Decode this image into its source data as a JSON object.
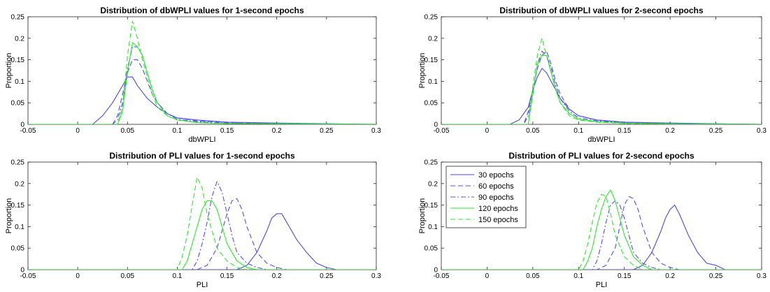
{
  "series_styles": [
    {
      "name": "30 epochs",
      "color": "#4a4ae0",
      "dash": "solid"
    },
    {
      "name": "60 epochs",
      "color": "#5050e8",
      "dash": "dashed"
    },
    {
      "name": "90 epochs",
      "color": "#5050e8",
      "dash": "dashdot"
    },
    {
      "name": "120 epochs",
      "color": "#2ee82e",
      "dash": "solid"
    },
    {
      "name": "150 epochs",
      "color": "#2ee82e",
      "dash": "dashed"
    }
  ],
  "chart_data": [
    {
      "type": "line",
      "title": "Distribution of dbWPLI values for 1-second epochs",
      "xlabel": "dbWPLI",
      "ylabel": "Proportion",
      "xlim": [
        -0.05,
        0.3
      ],
      "ylim": [
        0,
        0.25
      ],
      "xticks": [
        -0.05,
        0,
        0.05,
        0.1,
        0.15,
        0.2,
        0.25,
        0.3
      ],
      "xticklabels": [
        "-0.05",
        "0",
        "0.05",
        "0.1",
        "0.15",
        "0.2",
        "0.25",
        "0.3"
      ],
      "yticks": [
        0,
        0.05,
        0.1,
        0.15,
        0.2,
        0.25
      ],
      "yticklabels": [
        "0",
        "0.05",
        "0.1",
        "0.15",
        "0.2",
        "0.25"
      ],
      "legend": false,
      "series": [
        {
          "x": [
            -0.05,
            0.015,
            0.025,
            0.035,
            0.045,
            0.05,
            0.055,
            0.06,
            0.065,
            0.07,
            0.08,
            0.09,
            0.1,
            0.12,
            0.15,
            0.2,
            0.3
          ],
          "values": [
            0,
            0,
            0.02,
            0.05,
            0.09,
            0.11,
            0.11,
            0.09,
            0.075,
            0.06,
            0.04,
            0.025,
            0.015,
            0.01,
            0.005,
            0.003,
            0
          ]
        },
        {
          "x": [
            -0.05,
            0.035,
            0.04,
            0.045,
            0.05,
            0.055,
            0.06,
            0.065,
            0.07,
            0.075,
            0.08,
            0.09,
            0.1,
            0.12,
            0.15,
            0.2,
            0.3
          ],
          "values": [
            0,
            0,
            0.02,
            0.07,
            0.12,
            0.15,
            0.15,
            0.13,
            0.1,
            0.07,
            0.05,
            0.025,
            0.015,
            0.008,
            0.004,
            0.002,
            0
          ]
        },
        {
          "x": [
            -0.05,
            0.035,
            0.04,
            0.045,
            0.05,
            0.055,
            0.06,
            0.065,
            0.07,
            0.075,
            0.08,
            0.09,
            0.1,
            0.12,
            0.15,
            0.2,
            0.3
          ],
          "values": [
            0,
            0,
            0.01,
            0.05,
            0.13,
            0.18,
            0.18,
            0.16,
            0.12,
            0.08,
            0.05,
            0.025,
            0.012,
            0.006,
            0.003,
            0.002,
            0
          ]
        },
        {
          "x": [
            -0.05,
            0.04,
            0.045,
            0.05,
            0.055,
            0.06,
            0.065,
            0.07,
            0.075,
            0.08,
            0.09,
            0.1,
            0.12,
            0.15,
            0.3
          ],
          "values": [
            0,
            0,
            0.03,
            0.12,
            0.19,
            0.18,
            0.16,
            0.12,
            0.08,
            0.05,
            0.02,
            0.01,
            0.004,
            0.002,
            0
          ]
        },
        {
          "x": [
            -0.05,
            0.04,
            0.045,
            0.05,
            0.055,
            0.06,
            0.065,
            0.07,
            0.075,
            0.08,
            0.09,
            0.1,
            0.12,
            0.15,
            0.3
          ],
          "values": [
            0,
            0,
            0.04,
            0.16,
            0.24,
            0.2,
            0.15,
            0.11,
            0.07,
            0.04,
            0.02,
            0.01,
            0.004,
            0.002,
            0
          ]
        }
      ]
    },
    {
      "type": "line",
      "title": "Distribution of dbWPLI values for 2-second epochs",
      "xlabel": "dbWPLI",
      "ylabel": "Proportion",
      "xlim": [
        -0.05,
        0.3
      ],
      "ylim": [
        0,
        0.25
      ],
      "xticks": [
        -0.05,
        0,
        0.05,
        0.1,
        0.15,
        0.2,
        0.25,
        0.3
      ],
      "xticklabels": [
        "-0.05",
        "0",
        "0.05",
        "0.1",
        "0.15",
        "0.2",
        "0.25",
        "0.3"
      ],
      "yticks": [
        0,
        0.05,
        0.1,
        0.15,
        0.2,
        0.25
      ],
      "yticklabels": [
        "0",
        "0.05",
        "0.1",
        "0.15",
        "0.2",
        "0.25"
      ],
      "legend": false,
      "series": [
        {
          "x": [
            -0.05,
            0.025,
            0.035,
            0.045,
            0.05,
            0.055,
            0.06,
            0.065,
            0.07,
            0.075,
            0.08,
            0.09,
            0.1,
            0.12,
            0.15,
            0.2,
            0.3
          ],
          "values": [
            0,
            0,
            0.01,
            0.04,
            0.08,
            0.11,
            0.13,
            0.12,
            0.1,
            0.08,
            0.06,
            0.035,
            0.02,
            0.01,
            0.005,
            0.003,
            0
          ]
        },
        {
          "x": [
            -0.05,
            0.04,
            0.045,
            0.05,
            0.055,
            0.06,
            0.065,
            0.07,
            0.075,
            0.08,
            0.09,
            0.1,
            0.12,
            0.15,
            0.2,
            0.3
          ],
          "values": [
            0,
            0,
            0.03,
            0.08,
            0.13,
            0.16,
            0.17,
            0.14,
            0.1,
            0.07,
            0.035,
            0.02,
            0.01,
            0.005,
            0.002,
            0
          ]
        },
        {
          "x": [
            -0.05,
            0.04,
            0.045,
            0.05,
            0.055,
            0.06,
            0.065,
            0.07,
            0.075,
            0.08,
            0.09,
            0.1,
            0.12,
            0.15,
            0.2,
            0.3
          ],
          "values": [
            0,
            0,
            0.02,
            0.07,
            0.14,
            0.17,
            0.16,
            0.13,
            0.09,
            0.06,
            0.03,
            0.015,
            0.008,
            0.004,
            0.002,
            0
          ]
        },
        {
          "x": [
            -0.05,
            0.045,
            0.05,
            0.055,
            0.06,
            0.065,
            0.07,
            0.075,
            0.08,
            0.09,
            0.1,
            0.12,
            0.15,
            0.2,
            0.3
          ],
          "values": [
            0,
            0,
            0.07,
            0.14,
            0.16,
            0.16,
            0.12,
            0.08,
            0.05,
            0.025,
            0.012,
            0.006,
            0.003,
            0.001,
            0
          ]
        },
        {
          "x": [
            -0.05,
            0.045,
            0.05,
            0.055,
            0.06,
            0.065,
            0.07,
            0.075,
            0.08,
            0.09,
            0.1,
            0.12,
            0.15,
            0.2,
            0.3
          ],
          "values": [
            0,
            0,
            0.09,
            0.16,
            0.2,
            0.16,
            0.12,
            0.08,
            0.05,
            0.02,
            0.01,
            0.005,
            0.002,
            0.001,
            0
          ]
        }
      ]
    },
    {
      "type": "line",
      "title": "Distribution of PLI values for 1-second epochs",
      "xlabel": "PLI",
      "ylabel": "Proportion",
      "xlim": [
        -0.05,
        0.3
      ],
      "ylim": [
        0,
        0.25
      ],
      "xticks": [
        -0.05,
        0,
        0.05,
        0.1,
        0.15,
        0.2,
        0.25,
        0.3
      ],
      "xticklabels": [
        "-0.05",
        "0",
        "0.05",
        "0.1",
        "0.15",
        "0.2",
        "0.25",
        "0.3"
      ],
      "yticks": [
        0,
        0.05,
        0.1,
        0.15,
        0.2,
        0.25
      ],
      "yticklabels": [
        "0",
        "0.05",
        "0.1",
        "0.15",
        "0.2",
        "0.25"
      ],
      "legend": false,
      "series": [
        {
          "x": [
            -0.05,
            0.16,
            0.17,
            0.18,
            0.19,
            0.195,
            0.2,
            0.205,
            0.21,
            0.22,
            0.23,
            0.24,
            0.25,
            0.26,
            0.3
          ],
          "values": [
            0,
            0,
            0.01,
            0.04,
            0.09,
            0.12,
            0.13,
            0.13,
            0.11,
            0.07,
            0.04,
            0.015,
            0.005,
            0,
            0
          ]
        },
        {
          "x": [
            -0.05,
            0.12,
            0.13,
            0.14,
            0.145,
            0.15,
            0.155,
            0.16,
            0.165,
            0.17,
            0.18,
            0.19,
            0.2,
            0.21,
            0.3
          ],
          "values": [
            0,
            0,
            0.01,
            0.05,
            0.09,
            0.13,
            0.16,
            0.165,
            0.14,
            0.1,
            0.04,
            0.015,
            0.005,
            0,
            0
          ]
        },
        {
          "x": [
            -0.05,
            0.115,
            0.12,
            0.125,
            0.13,
            0.135,
            0.14,
            0.145,
            0.15,
            0.155,
            0.16,
            0.17,
            0.18,
            0.19,
            0.3
          ],
          "values": [
            0,
            0,
            0.02,
            0.06,
            0.11,
            0.17,
            0.205,
            0.18,
            0.13,
            0.08,
            0.04,
            0.015,
            0.005,
            0,
            0
          ]
        },
        {
          "x": [
            -0.05,
            0.105,
            0.11,
            0.115,
            0.12,
            0.125,
            0.13,
            0.135,
            0.14,
            0.145,
            0.15,
            0.16,
            0.17,
            0.18,
            0.3
          ],
          "values": [
            0,
            0,
            0.02,
            0.06,
            0.1,
            0.14,
            0.16,
            0.16,
            0.14,
            0.1,
            0.06,
            0.02,
            0.005,
            0,
            0
          ]
        },
        {
          "x": [
            -0.05,
            0.1,
            0.105,
            0.11,
            0.115,
            0.12,
            0.125,
            0.13,
            0.135,
            0.14,
            0.15,
            0.16,
            0.17,
            0.3
          ],
          "values": [
            0,
            0,
            0.03,
            0.08,
            0.15,
            0.215,
            0.19,
            0.13,
            0.09,
            0.05,
            0.02,
            0.005,
            0,
            0
          ]
        }
      ]
    },
    {
      "type": "line",
      "title": "Distribution of PLI values for 2-second epochs",
      "xlabel": "PLI",
      "ylabel": "Proportion",
      "xlim": [
        -0.05,
        0.3
      ],
      "ylim": [
        0,
        0.25
      ],
      "xticks": [
        -0.05,
        0,
        0.05,
        0.1,
        0.15,
        0.2,
        0.25,
        0.3
      ],
      "xticklabels": [
        "-0.05",
        "0",
        "0.05",
        "0.1",
        "0.15",
        "0.2",
        "0.25",
        "0.3"
      ],
      "yticks": [
        0,
        0.05,
        0.1,
        0.15,
        0.2,
        0.25
      ],
      "yticklabels": [
        "0",
        "0.05",
        "0.1",
        "0.15",
        "0.2",
        "0.25"
      ],
      "legend": true,
      "legend_location": "top-left",
      "series": [
        {
          "name": "30 epochs",
          "x": [
            -0.05,
            0.16,
            0.17,
            0.18,
            0.19,
            0.195,
            0.2,
            0.205,
            0.21,
            0.22,
            0.23,
            0.24,
            0.25,
            0.26,
            0.3
          ],
          "values": [
            0,
            0,
            0.01,
            0.04,
            0.09,
            0.12,
            0.14,
            0.15,
            0.13,
            0.08,
            0.04,
            0.015,
            0.01,
            0,
            0
          ]
        },
        {
          "name": "60 epochs",
          "x": [
            -0.05,
            0.12,
            0.13,
            0.14,
            0.145,
            0.15,
            0.155,
            0.16,
            0.165,
            0.17,
            0.18,
            0.19,
            0.2,
            0.21,
            0.3
          ],
          "values": [
            0,
            0,
            0.01,
            0.05,
            0.1,
            0.15,
            0.17,
            0.165,
            0.14,
            0.1,
            0.04,
            0.015,
            0.005,
            0,
            0
          ]
        },
        {
          "name": "90 epochs",
          "x": [
            -0.05,
            0.115,
            0.12,
            0.125,
            0.13,
            0.135,
            0.14,
            0.145,
            0.15,
            0.155,
            0.16,
            0.17,
            0.18,
            0.19,
            0.3
          ],
          "values": [
            0,
            0,
            0.02,
            0.06,
            0.11,
            0.15,
            0.16,
            0.15,
            0.12,
            0.08,
            0.04,
            0.015,
            0.005,
            0,
            0
          ]
        },
        {
          "name": "120 epochs",
          "x": [
            -0.05,
            0.105,
            0.11,
            0.115,
            0.12,
            0.125,
            0.13,
            0.135,
            0.14,
            0.145,
            0.15,
            0.16,
            0.17,
            0.18,
            0.3
          ],
          "values": [
            0,
            0,
            0.02,
            0.05,
            0.1,
            0.14,
            0.17,
            0.185,
            0.16,
            0.12,
            0.08,
            0.03,
            0.01,
            0,
            0
          ]
        },
        {
          "name": "150 epochs",
          "x": [
            -0.05,
            0.1,
            0.105,
            0.11,
            0.115,
            0.12,
            0.125,
            0.13,
            0.135,
            0.14,
            0.15,
            0.16,
            0.17,
            0.3
          ],
          "values": [
            0,
            0,
            0.02,
            0.06,
            0.11,
            0.155,
            0.175,
            0.17,
            0.13,
            0.08,
            0.03,
            0.01,
            0,
            0
          ]
        }
      ]
    }
  ]
}
